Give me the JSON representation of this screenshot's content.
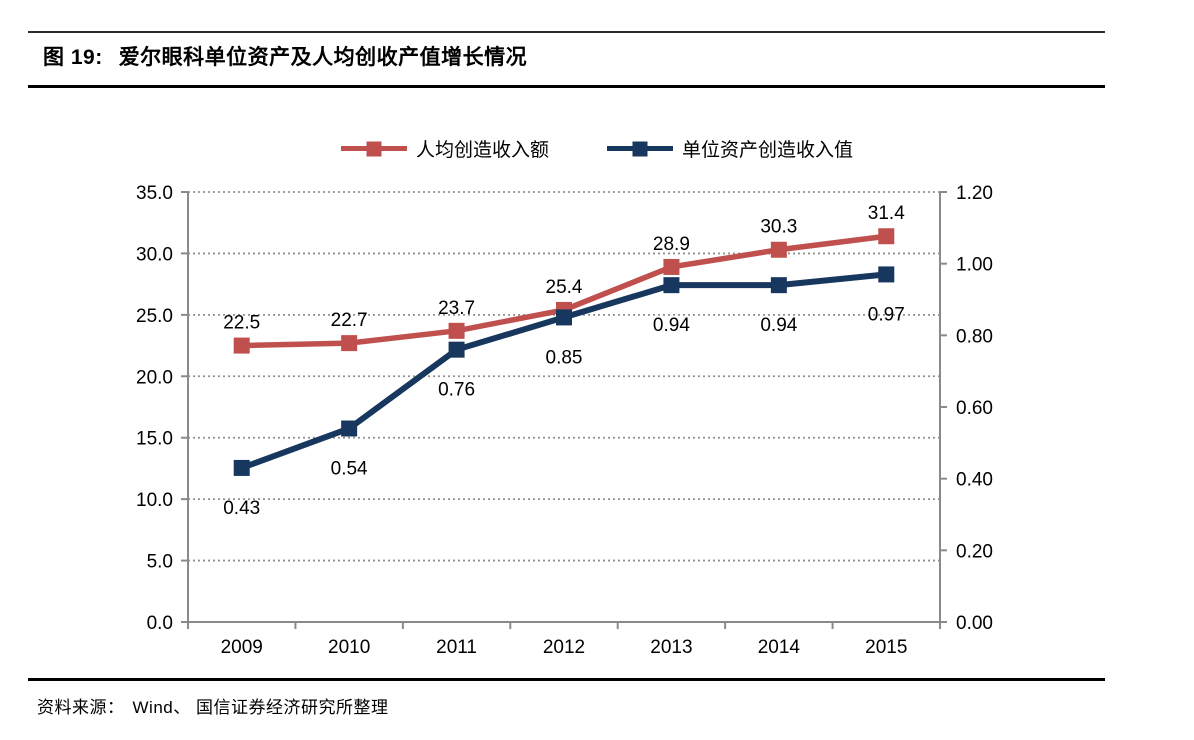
{
  "header": {
    "figure_label": "图 19:",
    "title": "爱尔眼科单位资产及人均创收产值增长情况"
  },
  "footer": {
    "source_label": "资料来源：",
    "source_text": "Wind、 国信证券经济研究所整理"
  },
  "chart_data": {
    "type": "line",
    "title": "爱尔眼科单位资产及人均创收产值增长情况",
    "categories": [
      "2009",
      "2010",
      "2011",
      "2012",
      "2013",
      "2014",
      "2015"
    ],
    "series": [
      {
        "name": "人均创造收入额",
        "axis": "left",
        "color": "#C0504D",
        "marker": "square",
        "label_position": "above",
        "decimals": 1,
        "values": [
          22.5,
          22.7,
          23.7,
          25.4,
          28.9,
          30.3,
          31.4
        ]
      },
      {
        "name": "单位资产创造收入值",
        "axis": "right",
        "color": "#17375E",
        "marker": "square",
        "label_position": "below",
        "decimals": 2,
        "values": [
          0.43,
          0.54,
          0.76,
          0.85,
          0.94,
          0.94,
          0.97
        ]
      }
    ],
    "left_axis": {
      "min": 0,
      "max": 35,
      "step": 5,
      "decimals": 1
    },
    "right_axis": {
      "min": 0,
      "max": 1.2,
      "step": 0.2,
      "decimals": 2
    },
    "grid": "dotted horizontal, tied to left axis",
    "legend_position": "top center",
    "colors": {
      "axis_gray": "#8a8a8a",
      "grid_gray": "#909090",
      "text_black": "#000000"
    }
  }
}
